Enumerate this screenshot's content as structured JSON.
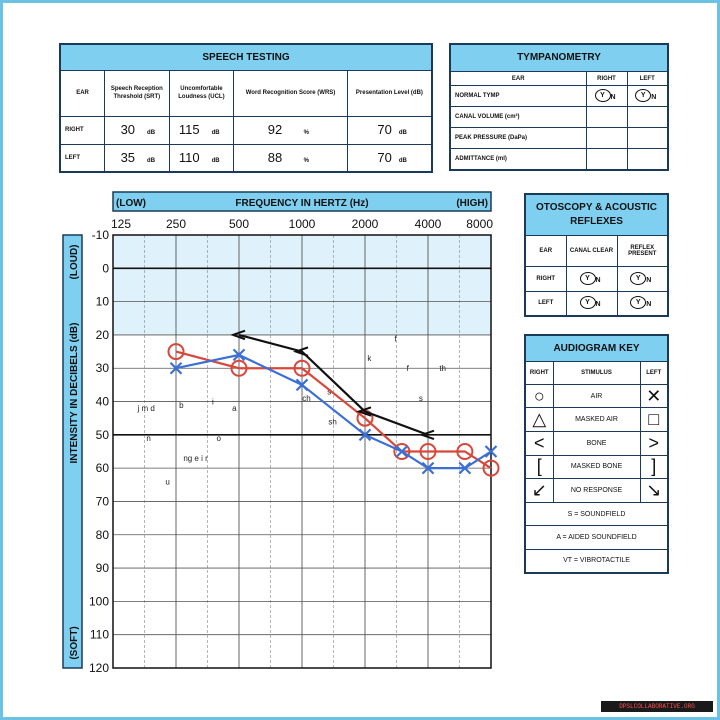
{
  "speech": {
    "title": "SPEECH TESTING",
    "col_ear": "EAR",
    "col_srt": "Speech Reception Threshold (SRT)",
    "col_ucl": "Uncomfortable Loudness (UCL)",
    "col_wrs": "Word Recognition Score (WRS)",
    "col_pl": "Presentation Level (dB)",
    "rows": [
      {
        "ear": "RIGHT",
        "srt": "30",
        "ucl": "115",
        "wrs": "92",
        "pl": "70"
      },
      {
        "ear": "LEFT",
        "srt": "35",
        "ucl": "110",
        "wrs": "88",
        "pl": "70"
      }
    ],
    "unit_db": "dB",
    "unit_pct": "%"
  },
  "tymp": {
    "title": "TYMPANOMETRY",
    "col_ear": "EAR",
    "col_right": "RIGHT",
    "col_left": "LEFT",
    "rows": [
      "NORMAL TYMP",
      "CANAL VOLUME (cm³)",
      "PEAK PRESSURE (DaPa)",
      "ADMITTANCE (ml)"
    ],
    "y": "Y",
    "n": "N"
  },
  "oto": {
    "title": "OTOSCOPY & ACOUSTIC REFLEXES",
    "col_ear": "EAR",
    "col_canal": "CANAL CLEAR",
    "col_reflex": "REFLEX PRESENT",
    "right": "RIGHT",
    "left": "LEFT"
  },
  "key": {
    "title": "AUDIOGRAM KEY",
    "right": "RIGHT",
    "stimulus": "STIMULUS",
    "left": "LEFT",
    "items": [
      {
        "r": "○",
        "label": "AIR",
        "l": "✕"
      },
      {
        "r": "△",
        "label": "MASKED AIR",
        "l": "□"
      },
      {
        "r": "<",
        "label": "BONE",
        "l": ">"
      },
      {
        "r": "[",
        "label": "MASKED BONE",
        "l": "]"
      },
      {
        "r": "↙",
        "label": "NO RESPONSE",
        "l": "↘"
      }
    ],
    "notes": [
      "S = SOUNDFIELD",
      "A = AIDED SOUNDFIELD",
      "VT = VIBROTACTILE"
    ]
  },
  "chart_data": {
    "type": "line",
    "title": "FREQUENCY IN HERTZ (Hz)",
    "low_label": "(LOW)",
    "high_label": "(HIGH)",
    "ylabel": "INTENSITY IN DECIBELS (dB)",
    "loud_label": "(LOUD)",
    "soft_label": "(SOFT)",
    "x_ticks": [
      "125",
      "250",
      "500",
      "1000",
      "2000",
      "4000",
      "8000"
    ],
    "y_ticks": [
      -10,
      0,
      10,
      20,
      30,
      40,
      50,
      60,
      70,
      80,
      90,
      100,
      110,
      120
    ],
    "ylim": [
      -10,
      120
    ],
    "y_inverted": true,
    "x_scale": "log2 (octave), with half-octave gridlines",
    "normal_band": [
      -10,
      20
    ],
    "grid": true,
    "series": [
      {
        "marker": "circle",
        "color": "#d9473a",
        "x": [
          250,
          500,
          1000,
          2000,
          3000,
          4000,
          6000,
          8000
        ],
        "y": [
          25,
          30,
          30,
          45,
          55,
          55,
          55,
          60
        ]
      },
      {
        "marker": "x",
        "color": "#3b6fd6",
        "x": [
          250,
          500,
          1000,
          2000,
          3000,
          4000,
          6000,
          8000
        ],
        "y": [
          30,
          26,
          35,
          50,
          55,
          60,
          60,
          55
        ]
      },
      {
        "marker": "bone_less",
        "color": "#111111",
        "x": [
          500,
          1000,
          2000,
          4000
        ],
        "y": [
          20,
          25,
          43,
          50
        ]
      }
    ],
    "speech_sounds": [
      {
        "text": "j m d",
        "x": 180,
        "y": 42
      },
      {
        "text": "b",
        "x": 265,
        "y": 41
      },
      {
        "text": "i",
        "x": 375,
        "y": 40
      },
      {
        "text": "a",
        "x": 475,
        "y": 42
      },
      {
        "text": "n",
        "x": 185,
        "y": 51
      },
      {
        "text": "o",
        "x": 400,
        "y": 51
      },
      {
        "text": "ng e i r",
        "x": 310,
        "y": 57
      },
      {
        "text": "u",
        "x": 228,
        "y": 64
      },
      {
        "text": "ch",
        "x": 1050,
        "y": 39
      },
      {
        "text": "s",
        "x": 1350,
        "y": 37
      },
      {
        "text": "sh",
        "x": 1400,
        "y": 46
      },
      {
        "text": "k",
        "x": 2100,
        "y": 27
      },
      {
        "text": "f",
        "x": 2800,
        "y": 21
      },
      {
        "text": "f",
        "x": 3200,
        "y": 30
      },
      {
        "text": "th",
        "x": 4700,
        "y": 30
      },
      {
        "text": "s",
        "x": 3700,
        "y": 39
      }
    ]
  },
  "watermark": "DPSLCOLLABORATIVE.ORG"
}
